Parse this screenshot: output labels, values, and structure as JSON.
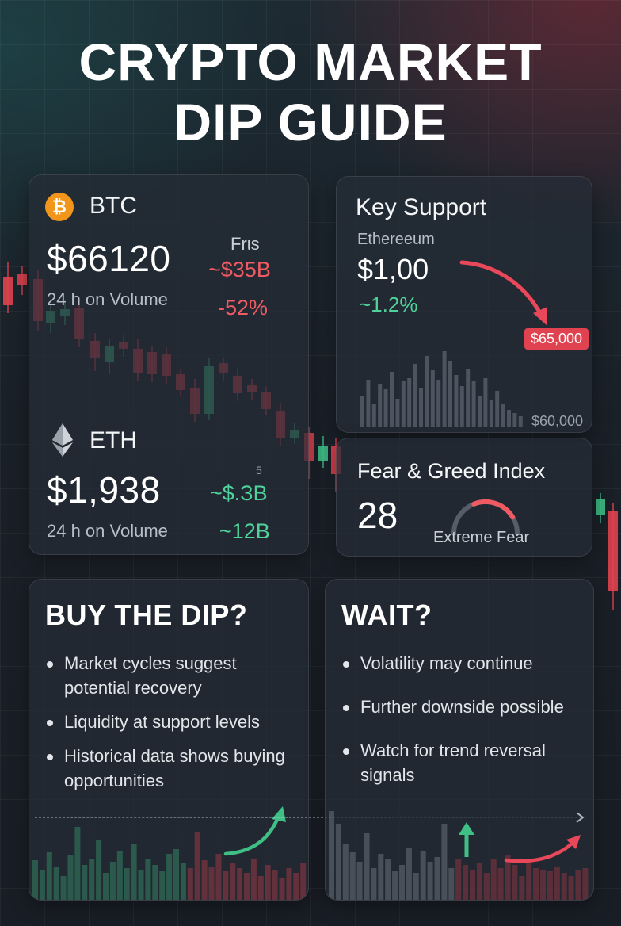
{
  "title": {
    "line1": "CRYPTO MARKET",
    "line2": "DIP GUIDE"
  },
  "btc_card": {
    "icon": "bitcoin-icon",
    "icon_glyph": "₿",
    "symbol": "BTC",
    "price": "$66120",
    "volume_label": "24 h on Volume",
    "side_label": "Frιs",
    "change_value": "~$35B",
    "change_pct": "-52%"
  },
  "eth_card": {
    "icon": "ethereum-icon",
    "symbol": "ETH",
    "price": "$1,938",
    "volume_label": "24 h on Volume",
    "side_label": "5",
    "change_value": "~$.ЗB",
    "change_small": "~12B"
  },
  "support_card": {
    "heading": "Key Support",
    "coin_label": "Ethereeum",
    "price": "$1,00",
    "change_pct": "~1.2%",
    "level_tag": "$65,000",
    "level_low": "$60,000"
  },
  "fear_greed_card": {
    "heading": "Fear & Greed Index",
    "value": "28",
    "gauge_fraction": 0.28,
    "label": "Extreme Fear"
  },
  "buy_card": {
    "heading": "BUY THE DIP?",
    "bullets": [
      "Market cycles suggest potential recovery",
      "Liquidity at support levels",
      "Historical data shows buying opportunities"
    ]
  },
  "wait_card": {
    "heading": "WAIT?",
    "bullets": [
      "Volatility may continue",
      "Further downside possible",
      "Watch for trend reversal signals"
    ]
  },
  "colors": {
    "up": "#3fbf86",
    "down": "#e0434f",
    "btc": "#f2961b",
    "accent_red": "#f05a63",
    "accent_green": "#4fd39a"
  }
}
